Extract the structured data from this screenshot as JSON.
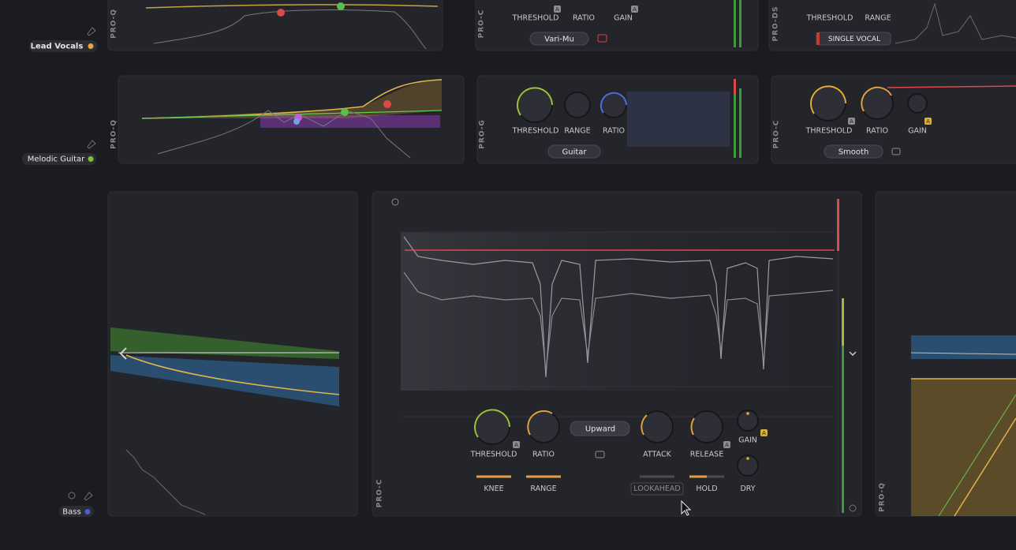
{
  "tracks": {
    "lead_vocals": "Lead Vocals",
    "melodic_guitar": "Melodic Guitar",
    "bass": "Bass"
  },
  "row1": {
    "eq": "PRO-Q",
    "comp": {
      "name": "PRO-C",
      "labels": [
        "THRESHOLD",
        "RATIO",
        "GAIN"
      ],
      "auto": "A",
      "mode": "Vari-Mu"
    },
    "deesser": {
      "name": "PRO-DS",
      "labels": [
        "THRESHOLD",
        "RANGE"
      ],
      "mode": "SINGLE VOCAL"
    }
  },
  "row2": {
    "eq": "PRO-Q",
    "gate": {
      "name": "PRO-G",
      "labels": [
        "THRESHOLD",
        "RANGE",
        "RATIO"
      ],
      "mode": "Guitar"
    },
    "comp": {
      "name": "PRO-C",
      "labels": [
        "THRESHOLD",
        "RATIO",
        "GAIN"
      ],
      "auto": "A",
      "mode": "Smooth"
    }
  },
  "row3": {
    "comp": {
      "name": "PRO-C",
      "labels": [
        "THRESHOLD",
        "RATIO",
        "ATTACK",
        "RELEASE",
        "GAIN",
        "KNEE",
        "RANGE",
        "LOOKAHEAD",
        "HOLD",
        "DRY"
      ],
      "auto": "A",
      "mode": "Upward"
    },
    "eq_right": "PRO-Q"
  }
}
